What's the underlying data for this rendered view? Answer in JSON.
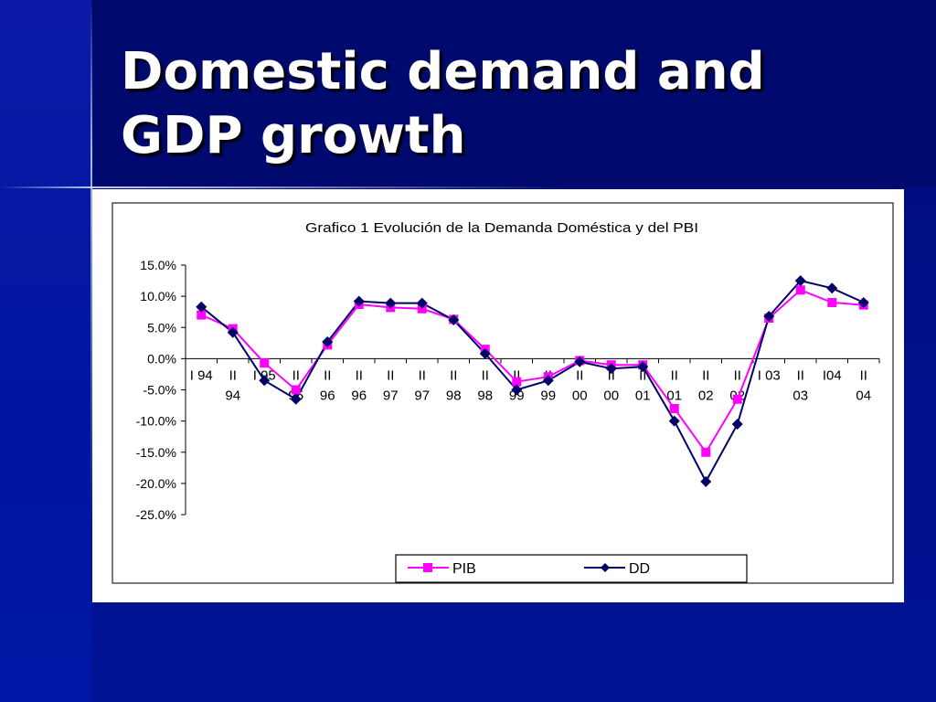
{
  "slide": {
    "title_line1": "Domestic demand and",
    "title_line2": "GDP growth"
  },
  "colors": {
    "background": "#000a7a",
    "pib": "#ff00ff",
    "dd": "#000066"
  },
  "chart_data": {
    "type": "line",
    "title": "Grafico 1 Evolución de la Demanda Doméstica y del PBI",
    "categories": [
      [
        "I 94"
      ],
      [
        "II",
        "94"
      ],
      [
        "I 95"
      ],
      [
        "II",
        "95"
      ],
      [
        "II",
        "96"
      ],
      [
        "II",
        "96"
      ],
      [
        "II",
        "97"
      ],
      [
        "II",
        "97"
      ],
      [
        "II",
        "98"
      ],
      [
        "II",
        "98"
      ],
      [
        "II",
        "99"
      ],
      [
        "II",
        "99"
      ],
      [
        "II",
        "00"
      ],
      [
        "II",
        "00"
      ],
      [
        "II",
        "01"
      ],
      [
        "II",
        "01"
      ],
      [
        "II",
        "02"
      ],
      [
        "II",
        "02"
      ],
      [
        "I 03"
      ],
      [
        "II",
        "03"
      ],
      [
        "I04"
      ],
      [
        "II",
        "04"
      ]
    ],
    "series": [
      {
        "name": "PIB",
        "color": "#ff00ff",
        "marker": "square",
        "values": [
          7.0,
          4.8,
          -0.7,
          -5.0,
          2.2,
          8.7,
          8.2,
          8.0,
          6.3,
          1.5,
          -3.7,
          -2.9,
          -0.3,
          -1.0,
          -1.0,
          -8.0,
          -15.0,
          -6.5,
          6.5,
          11.0,
          9.0,
          8.6
        ]
      },
      {
        "name": "DD",
        "color": "#000066",
        "marker": "diamond",
        "values": [
          8.3,
          4.2,
          -3.5,
          -6.5,
          2.7,
          9.2,
          8.9,
          8.9,
          6.2,
          0.8,
          -5.0,
          -3.5,
          -0.5,
          -1.6,
          -1.3,
          -10.0,
          -19.7,
          -10.5,
          6.8,
          12.5,
          11.3,
          9.0
        ]
      }
    ],
    "y_ticks": [
      "15.0%",
      "10.0%",
      "5.0%",
      "0.0%",
      "-5.0%",
      "-10.0%",
      "-15.0%",
      "-20.0%",
      "-25.0%"
    ],
    "ylim": [
      -25,
      15
    ],
    "grid": false,
    "legend_position": "bottom-center"
  }
}
